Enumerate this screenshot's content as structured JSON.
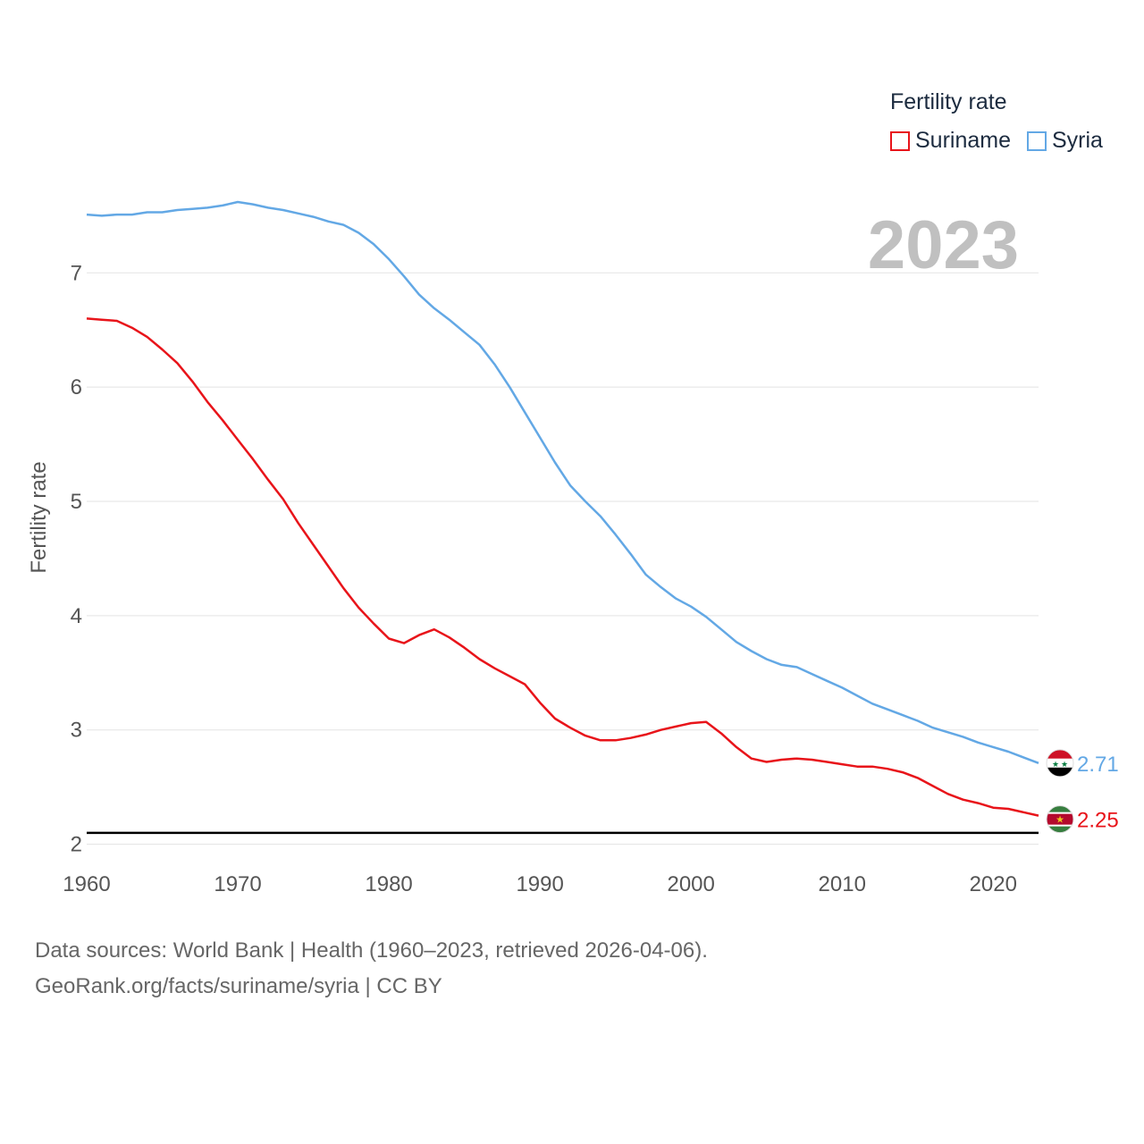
{
  "legend": {
    "title": "Fertility rate"
  },
  "footer": {
    "line1": "Data sources: World Bank | Health (1960–2023, retrieved 2026-04-06).",
    "line2": "GeoRank.org/facts/suriname/syria | CC BY"
  },
  "chart_data": {
    "type": "line",
    "year_label": "2023",
    "ylabel": "Fertility rate",
    "xlim": [
      1960,
      2023
    ],
    "ylim": [
      1.95,
      7.8
    ],
    "x_ticks": [
      1960,
      1970,
      1980,
      1990,
      2000,
      2010,
      2020
    ],
    "y_ticks": [
      2,
      3,
      4,
      5,
      6,
      7
    ],
    "reference_line": 2.1,
    "x": [
      1960,
      1961,
      1962,
      1963,
      1964,
      1965,
      1966,
      1967,
      1968,
      1969,
      1970,
      1971,
      1972,
      1973,
      1974,
      1975,
      1976,
      1977,
      1978,
      1979,
      1980,
      1981,
      1982,
      1983,
      1984,
      1985,
      1986,
      1987,
      1988,
      1989,
      1990,
      1991,
      1992,
      1993,
      1994,
      1995,
      1996,
      1997,
      1998,
      1999,
      2000,
      2001,
      2002,
      2003,
      2004,
      2005,
      2006,
      2007,
      2008,
      2009,
      2010,
      2011,
      2012,
      2013,
      2014,
      2015,
      2016,
      2017,
      2018,
      2019,
      2020,
      2021,
      2022,
      2023
    ],
    "series": [
      {
        "name": "Suriname",
        "color": "#e8141a",
        "end_label": "2.25",
        "flag": "suriname-flag-icon",
        "values": [
          6.6,
          6.59,
          6.58,
          6.52,
          6.44,
          6.33,
          6.21,
          6.05,
          5.87,
          5.71,
          5.54,
          5.37,
          5.19,
          5.02,
          4.81,
          4.62,
          4.43,
          4.24,
          4.07,
          3.93,
          3.8,
          3.76,
          3.83,
          3.88,
          3.81,
          3.72,
          3.62,
          3.54,
          3.47,
          3.4,
          3.24,
          3.1,
          3.02,
          2.95,
          2.91,
          2.91,
          2.93,
          2.96,
          3.0,
          3.03,
          3.06,
          3.07,
          2.97,
          2.85,
          2.75,
          2.72,
          2.74,
          2.75,
          2.74,
          2.72,
          2.7,
          2.68,
          2.68,
          2.66,
          2.63,
          2.58,
          2.51,
          2.44,
          2.39,
          2.36,
          2.32,
          2.31,
          2.28,
          2.25
        ]
      },
      {
        "name": "Syria",
        "color": "#63a8e5",
        "end_label": "2.71",
        "flag": "syria-flag-icon",
        "values": [
          7.51,
          7.5,
          7.51,
          7.51,
          7.53,
          7.53,
          7.55,
          7.56,
          7.57,
          7.59,
          7.62,
          7.6,
          7.57,
          7.55,
          7.52,
          7.49,
          7.45,
          7.42,
          7.35,
          7.25,
          7.12,
          6.97,
          6.81,
          6.69,
          6.59,
          6.48,
          6.37,
          6.2,
          6.0,
          5.78,
          5.56,
          5.34,
          5.14,
          5.0,
          4.87,
          4.71,
          4.54,
          4.36,
          4.25,
          4.15,
          4.08,
          3.99,
          3.88,
          3.77,
          3.69,
          3.62,
          3.57,
          3.55,
          3.49,
          3.43,
          3.37,
          3.3,
          3.23,
          3.18,
          3.13,
          3.08,
          3.02,
          2.98,
          2.94,
          2.89,
          2.85,
          2.81,
          2.76,
          2.71
        ]
      }
    ]
  }
}
